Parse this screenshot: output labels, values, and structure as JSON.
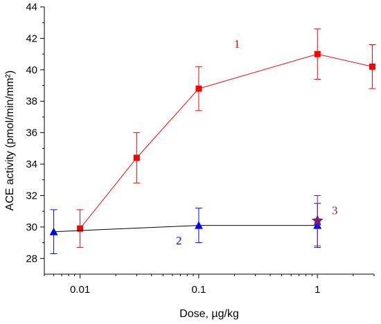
{
  "chart_data": {
    "type": "scatter",
    "xlabel": "Dose, µg/kg",
    "ylabel": "ACE activity (pmol/min/mm²)",
    "xscale": "log",
    "xlim": [
      0.005,
      3.0
    ],
    "ylim": [
      27,
      44
    ],
    "x_ticks": [
      0.01,
      0.1,
      1
    ],
    "x_tick_labels": [
      "0.01",
      "0.1",
      "1"
    ],
    "y_ticks": [
      28,
      30,
      32,
      34,
      36,
      38,
      40,
      42,
      44
    ],
    "y_tick_labels": [
      "28",
      "30",
      "32",
      "34",
      "36",
      "38",
      "40",
      "42",
      "44"
    ],
    "grid": false,
    "series": [
      {
        "label": "1",
        "color": "#ff0000",
        "marker": "square",
        "line": true,
        "x": [
          0.01,
          0.03,
          0.1,
          1,
          2.9
        ],
        "y": [
          29.9,
          34.4,
          38.8,
          41.0,
          40.2
        ],
        "err": [
          1.2,
          1.6,
          1.4,
          1.6,
          1.4
        ]
      },
      {
        "label": "2",
        "color": "#0000ff",
        "line_color": "#000000",
        "marker": "triangle",
        "line": true,
        "x": [
          0.006,
          0.1,
          1
        ],
        "y": [
          29.7,
          30.1,
          30.1
        ],
        "err": [
          1.4,
          1.1,
          1.4
        ]
      },
      {
        "label": "3",
        "color": "#7b1c7b",
        "marker": "star",
        "line": false,
        "x": [
          1
        ],
        "y": [
          30.4
        ],
        "err": [
          1.6
        ]
      }
    ]
  }
}
